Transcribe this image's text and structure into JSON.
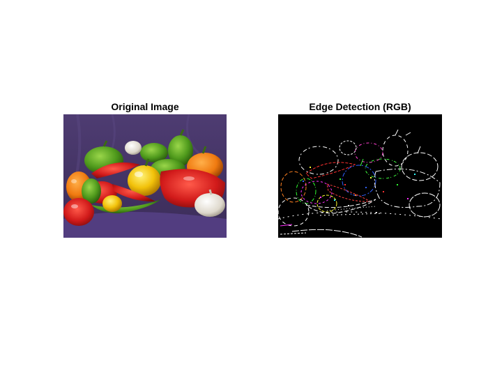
{
  "figure": {
    "background_color": "#ffffff"
  },
  "subplots": [
    {
      "title": "Original Image",
      "image_description_icon": "peppers-photo",
      "background_color": "#4b3a6b"
    },
    {
      "title": "Edge Detection (RGB)",
      "image_description_icon": "edge-map",
      "background_color": "#000000"
    }
  ]
}
